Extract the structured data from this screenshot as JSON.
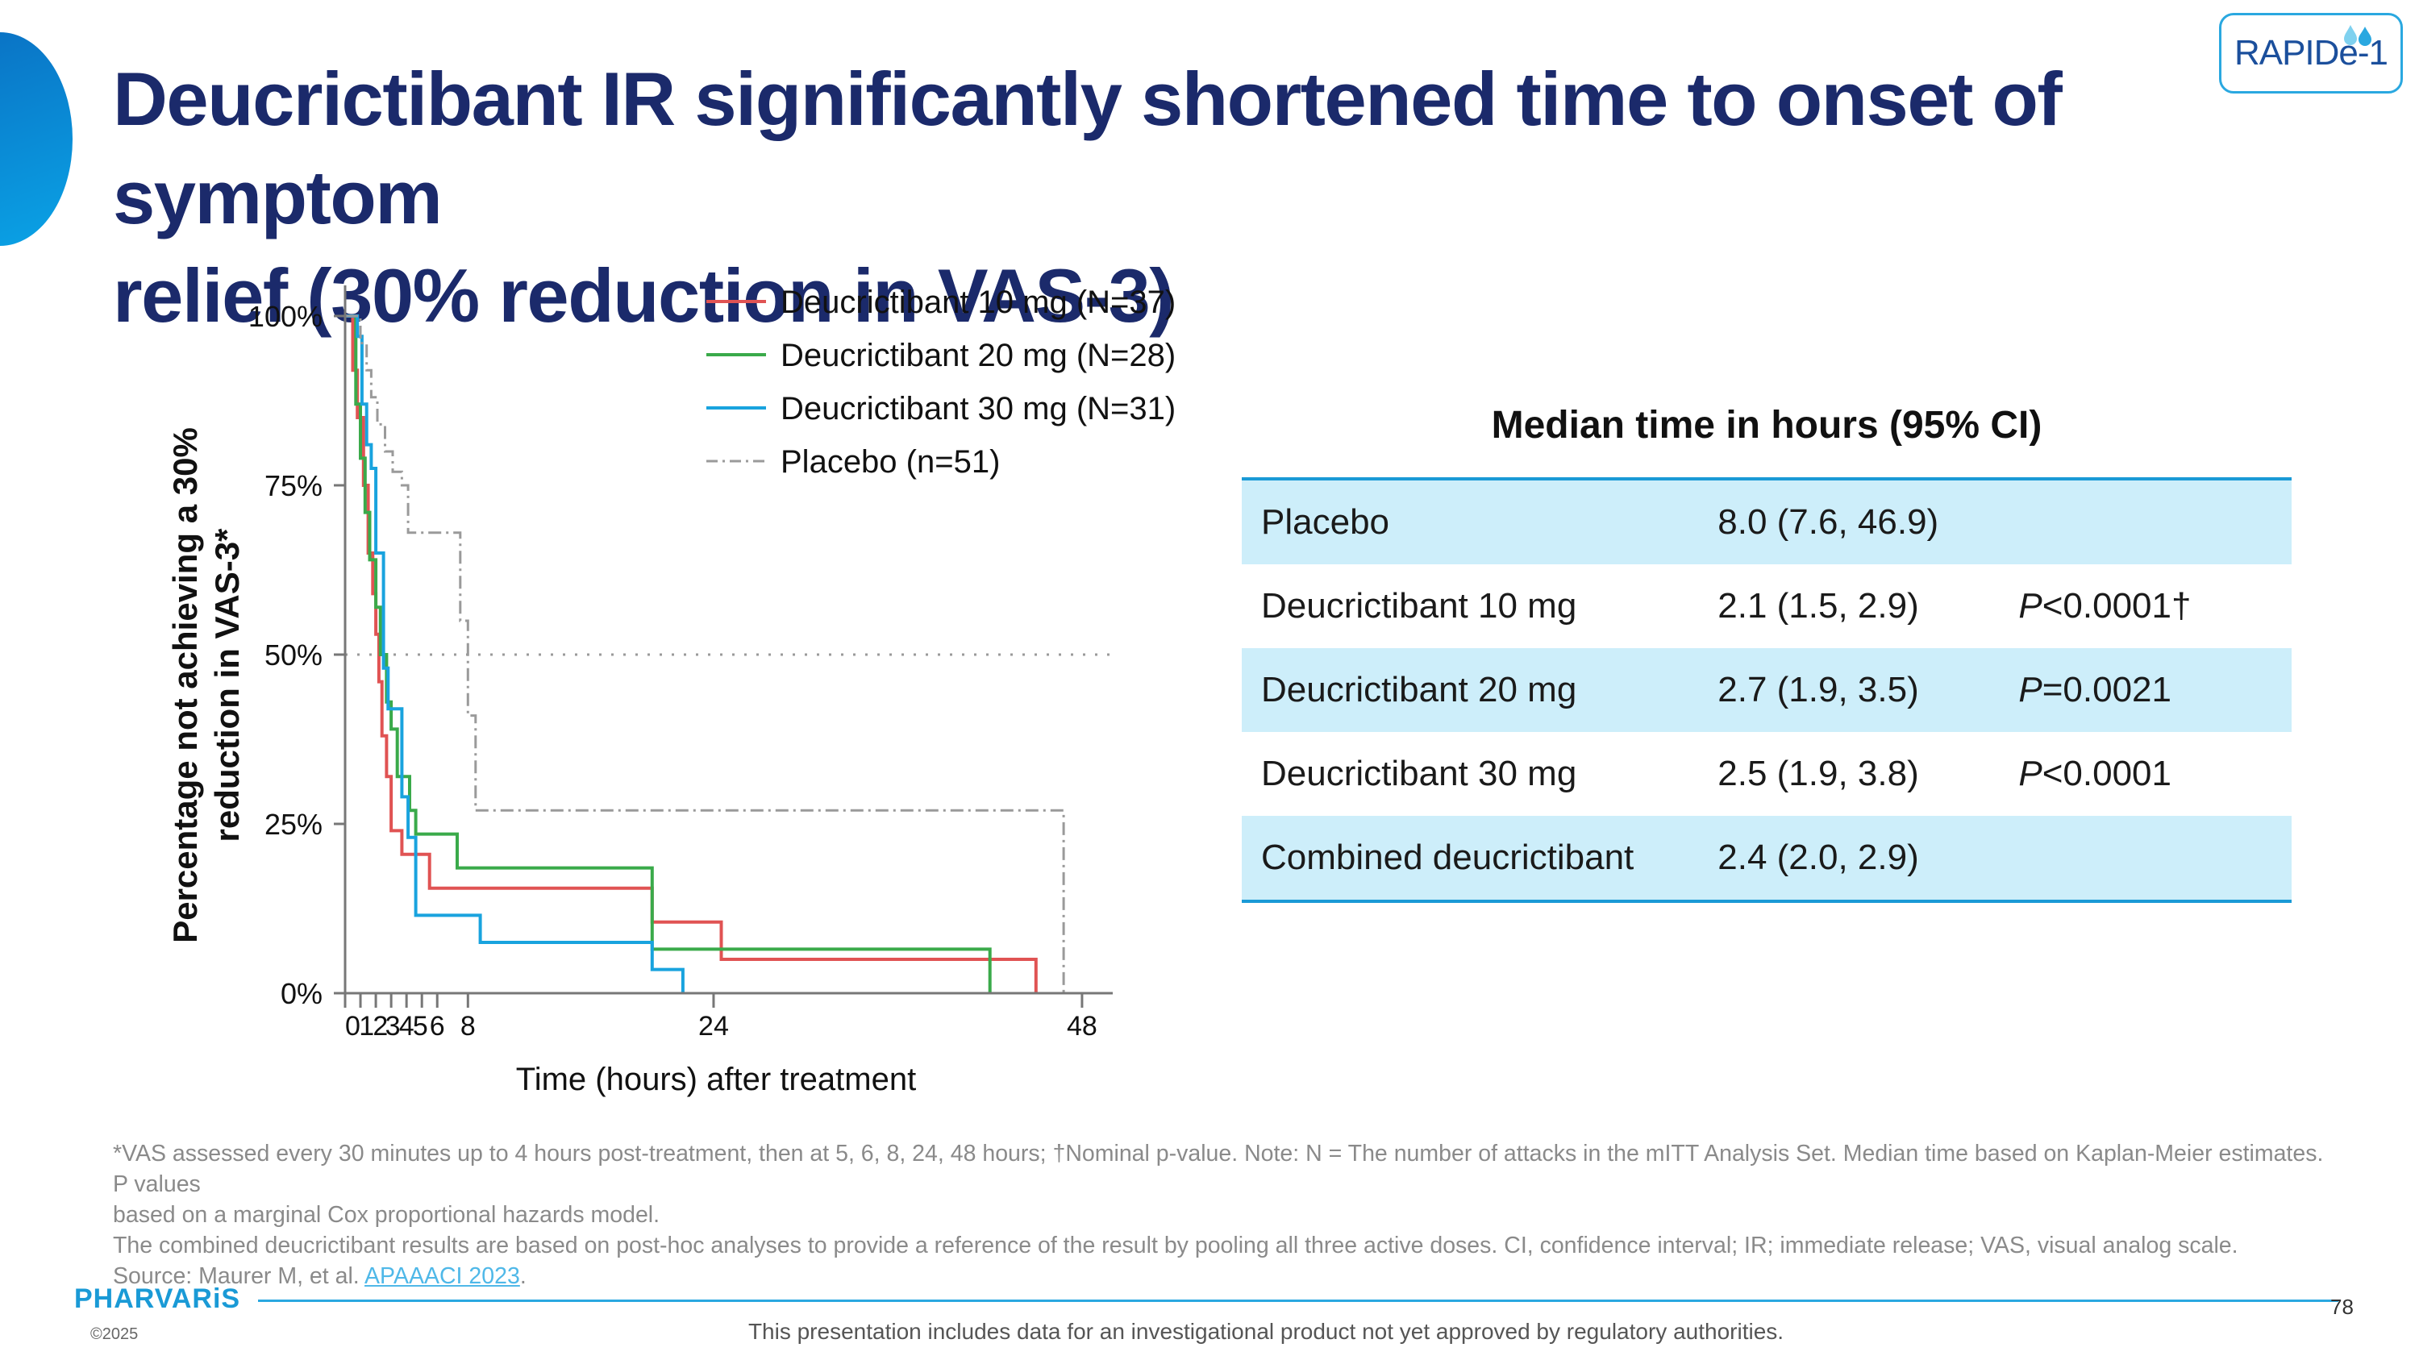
{
  "slide": {
    "title_line1": "Deucrictibant IR significantly shortened time to onset of symptom",
    "title_line2": "relief (30% reduction in VAS-3)",
    "logo": {
      "text": "RAPIDe-1",
      "icon": "water-drops-icon",
      "color": "#1b4f9c"
    },
    "brand_logo": "PHARVARiS",
    "copyright": "©2025",
    "disclaimer": "This presentation includes data for an investigational product not yet approved by regulatory authorities.",
    "page_number": "78"
  },
  "chart_data": {
    "type": "line",
    "subtype": "kaplan-meier-step",
    "xlabel": "Time (hours) after treatment",
    "ylabel_line1": "Percentage not achieving a 30%",
    "ylabel_line2": "reduction in VAS-3*",
    "xlim": [
      0,
      50
    ],
    "ylim": [
      0,
      105
    ],
    "x_ticks": [
      0,
      1,
      2,
      3,
      4,
      5,
      6,
      8,
      24,
      48
    ],
    "x_tick_labels": [
      {
        "value": 0.5,
        "label": "0"
      },
      {
        "value": 1.4,
        "label": "1"
      },
      {
        "value": 2.3,
        "label": "2"
      },
      {
        "value": 3.1,
        "label": "3"
      },
      {
        "value": 4.0,
        "label": "4"
      },
      {
        "value": 4.9,
        "label": "5"
      },
      {
        "value": 6.0,
        "label": "6"
      },
      {
        "value": 8.0,
        "label": "8"
      },
      {
        "value": 24,
        "label": "24"
      },
      {
        "value": 48,
        "label": "48"
      }
    ],
    "y_ticks": [
      0,
      25,
      50,
      75,
      100
    ],
    "y_tick_labels": [
      "0%",
      "25%",
      "50%",
      "75%",
      "100%"
    ],
    "reference_line_y": 50,
    "legend_position": "top-right",
    "series": [
      {
        "name": "Deucrictibant 10 mg (N=37)",
        "color": "#e05353",
        "style": "solid",
        "points": [
          [
            0,
            100
          ],
          [
            0.5,
            100
          ],
          [
            0.5,
            92
          ],
          [
            0.8,
            92
          ],
          [
            0.8,
            85
          ],
          [
            1.2,
            85
          ],
          [
            1.2,
            75
          ],
          [
            1.5,
            75
          ],
          [
            1.5,
            65
          ],
          [
            1.8,
            65
          ],
          [
            1.8,
            59
          ],
          [
            2.0,
            59
          ],
          [
            2.0,
            53
          ],
          [
            2.2,
            53
          ],
          [
            2.2,
            46
          ],
          [
            2.4,
            46
          ],
          [
            2.4,
            38
          ],
          [
            2.7,
            38
          ],
          [
            2.7,
            32
          ],
          [
            3.0,
            32
          ],
          [
            3.0,
            24
          ],
          [
            3.7,
            24
          ],
          [
            3.7,
            20.5
          ],
          [
            5.5,
            20.5
          ],
          [
            5.5,
            15.5
          ],
          [
            20,
            15.5
          ],
          [
            20,
            10.5
          ],
          [
            24.5,
            10.5
          ],
          [
            24.5,
            5
          ],
          [
            45,
            5
          ],
          [
            45,
            0
          ]
        ]
      },
      {
        "name": "Deucrictibant 20 mg (N=28)",
        "color": "#3aaa4a",
        "style": "solid",
        "points": [
          [
            0,
            100
          ],
          [
            0.7,
            100
          ],
          [
            0.7,
            87
          ],
          [
            1.0,
            87
          ],
          [
            1.0,
            79
          ],
          [
            1.3,
            79
          ],
          [
            1.3,
            71
          ],
          [
            1.6,
            71
          ],
          [
            1.6,
            64
          ],
          [
            2.0,
            64
          ],
          [
            2.0,
            57
          ],
          [
            2.3,
            57
          ],
          [
            2.3,
            50
          ],
          [
            2.7,
            50
          ],
          [
            2.7,
            43
          ],
          [
            3.0,
            43
          ],
          [
            3.0,
            39
          ],
          [
            3.4,
            39
          ],
          [
            3.4,
            32
          ],
          [
            4.2,
            32
          ],
          [
            4.2,
            27
          ],
          [
            4.6,
            27
          ],
          [
            4.6,
            23.5
          ],
          [
            7.3,
            23.5
          ],
          [
            7.3,
            18.5
          ],
          [
            20,
            18.5
          ],
          [
            20,
            6.5
          ],
          [
            42,
            6.5
          ],
          [
            42,
            0
          ]
        ]
      },
      {
        "name": "Deucrictibant 30 mg (N=31)",
        "color": "#19a3de",
        "style": "solid",
        "points": [
          [
            0,
            100
          ],
          [
            0.8,
            100
          ],
          [
            0.8,
            97
          ],
          [
            1.1,
            97
          ],
          [
            1.1,
            87
          ],
          [
            1.4,
            87
          ],
          [
            1.4,
            81
          ],
          [
            1.7,
            81
          ],
          [
            1.7,
            77.5
          ],
          [
            2.0,
            77.5
          ],
          [
            2.0,
            65
          ],
          [
            2.5,
            65
          ],
          [
            2.5,
            48
          ],
          [
            2.8,
            48
          ],
          [
            2.8,
            42
          ],
          [
            3.7,
            42
          ],
          [
            3.7,
            29
          ],
          [
            4.1,
            29
          ],
          [
            4.1,
            23
          ],
          [
            4.6,
            23
          ],
          [
            4.6,
            11.5
          ],
          [
            8.8,
            11.5
          ],
          [
            8.8,
            7.5
          ],
          [
            20,
            7.5
          ],
          [
            20,
            3.5
          ],
          [
            22,
            3.5
          ],
          [
            22,
            0
          ]
        ]
      },
      {
        "name": "Placebo (n=51)",
        "color": "#9a9a9a",
        "style": "dashdot",
        "points": [
          [
            0,
            100
          ],
          [
            1.0,
            100
          ],
          [
            1.0,
            96
          ],
          [
            1.4,
            96
          ],
          [
            1.4,
            92
          ],
          [
            1.7,
            92
          ],
          [
            1.7,
            88
          ],
          [
            2.1,
            88
          ],
          [
            2.1,
            84
          ],
          [
            2.6,
            84
          ],
          [
            2.6,
            80
          ],
          [
            3.1,
            80
          ],
          [
            3.1,
            77
          ],
          [
            3.7,
            77
          ],
          [
            3.7,
            75
          ],
          [
            4.1,
            75
          ],
          [
            4.1,
            68
          ],
          [
            7.5,
            68
          ],
          [
            7.5,
            55
          ],
          [
            8.0,
            55
          ],
          [
            8.0,
            41
          ],
          [
            8.5,
            41
          ],
          [
            8.5,
            27
          ],
          [
            46.8,
            27
          ],
          [
            46.8,
            0
          ]
        ]
      }
    ]
  },
  "table": {
    "title": "Median time in hours (95% CI)",
    "rows": [
      {
        "label": "Placebo",
        "median": "8.0 (7.6, 46.9)",
        "p_prefix": "",
        "p_value": "",
        "shaded": true
      },
      {
        "label": "Deucrictibant 10 mg",
        "median": "2.1 (1.5, 2.9)",
        "p_prefix": "P",
        "p_value": "<0.0001†",
        "shaded": false
      },
      {
        "label": "Deucrictibant  20 mg",
        "median": "2.7 (1.9, 3.5)",
        "p_prefix": "P",
        "p_value": "=0.0021",
        "shaded": true
      },
      {
        "label": "Deucrictibant  30 mg",
        "median": "2.5 (1.9, 3.8)",
        "p_prefix": "P",
        "p_value": "<0.0001",
        "shaded": false
      },
      {
        "label": "Combined deucrictibant",
        "median": "2.4 (2.0, 2.9)",
        "p_prefix": "",
        "p_value": "",
        "shaded": true
      }
    ]
  },
  "footnotes": {
    "line1": "*VAS assessed every 30 minutes up to 4 hours post-treatment, then at 5, 6, 8, 24, 48 hours; †Nominal p-value. Note: N = The number of attacks in the mITT Analysis Set. Median time based on Kaplan-Meier estimates. P values",
    "line2": "based on a marginal Cox proportional hazards model.",
    "line3": "The combined deucrictibant results are based on post-hoc analyses to provide a reference of the result by pooling all three active doses. CI, confidence interval; IR; immediate release; VAS, visual analog scale.",
    "source_prefix": "Source: Maurer M, et al. ",
    "source_link": "APAAACI 2023",
    "source_suffix": "."
  }
}
